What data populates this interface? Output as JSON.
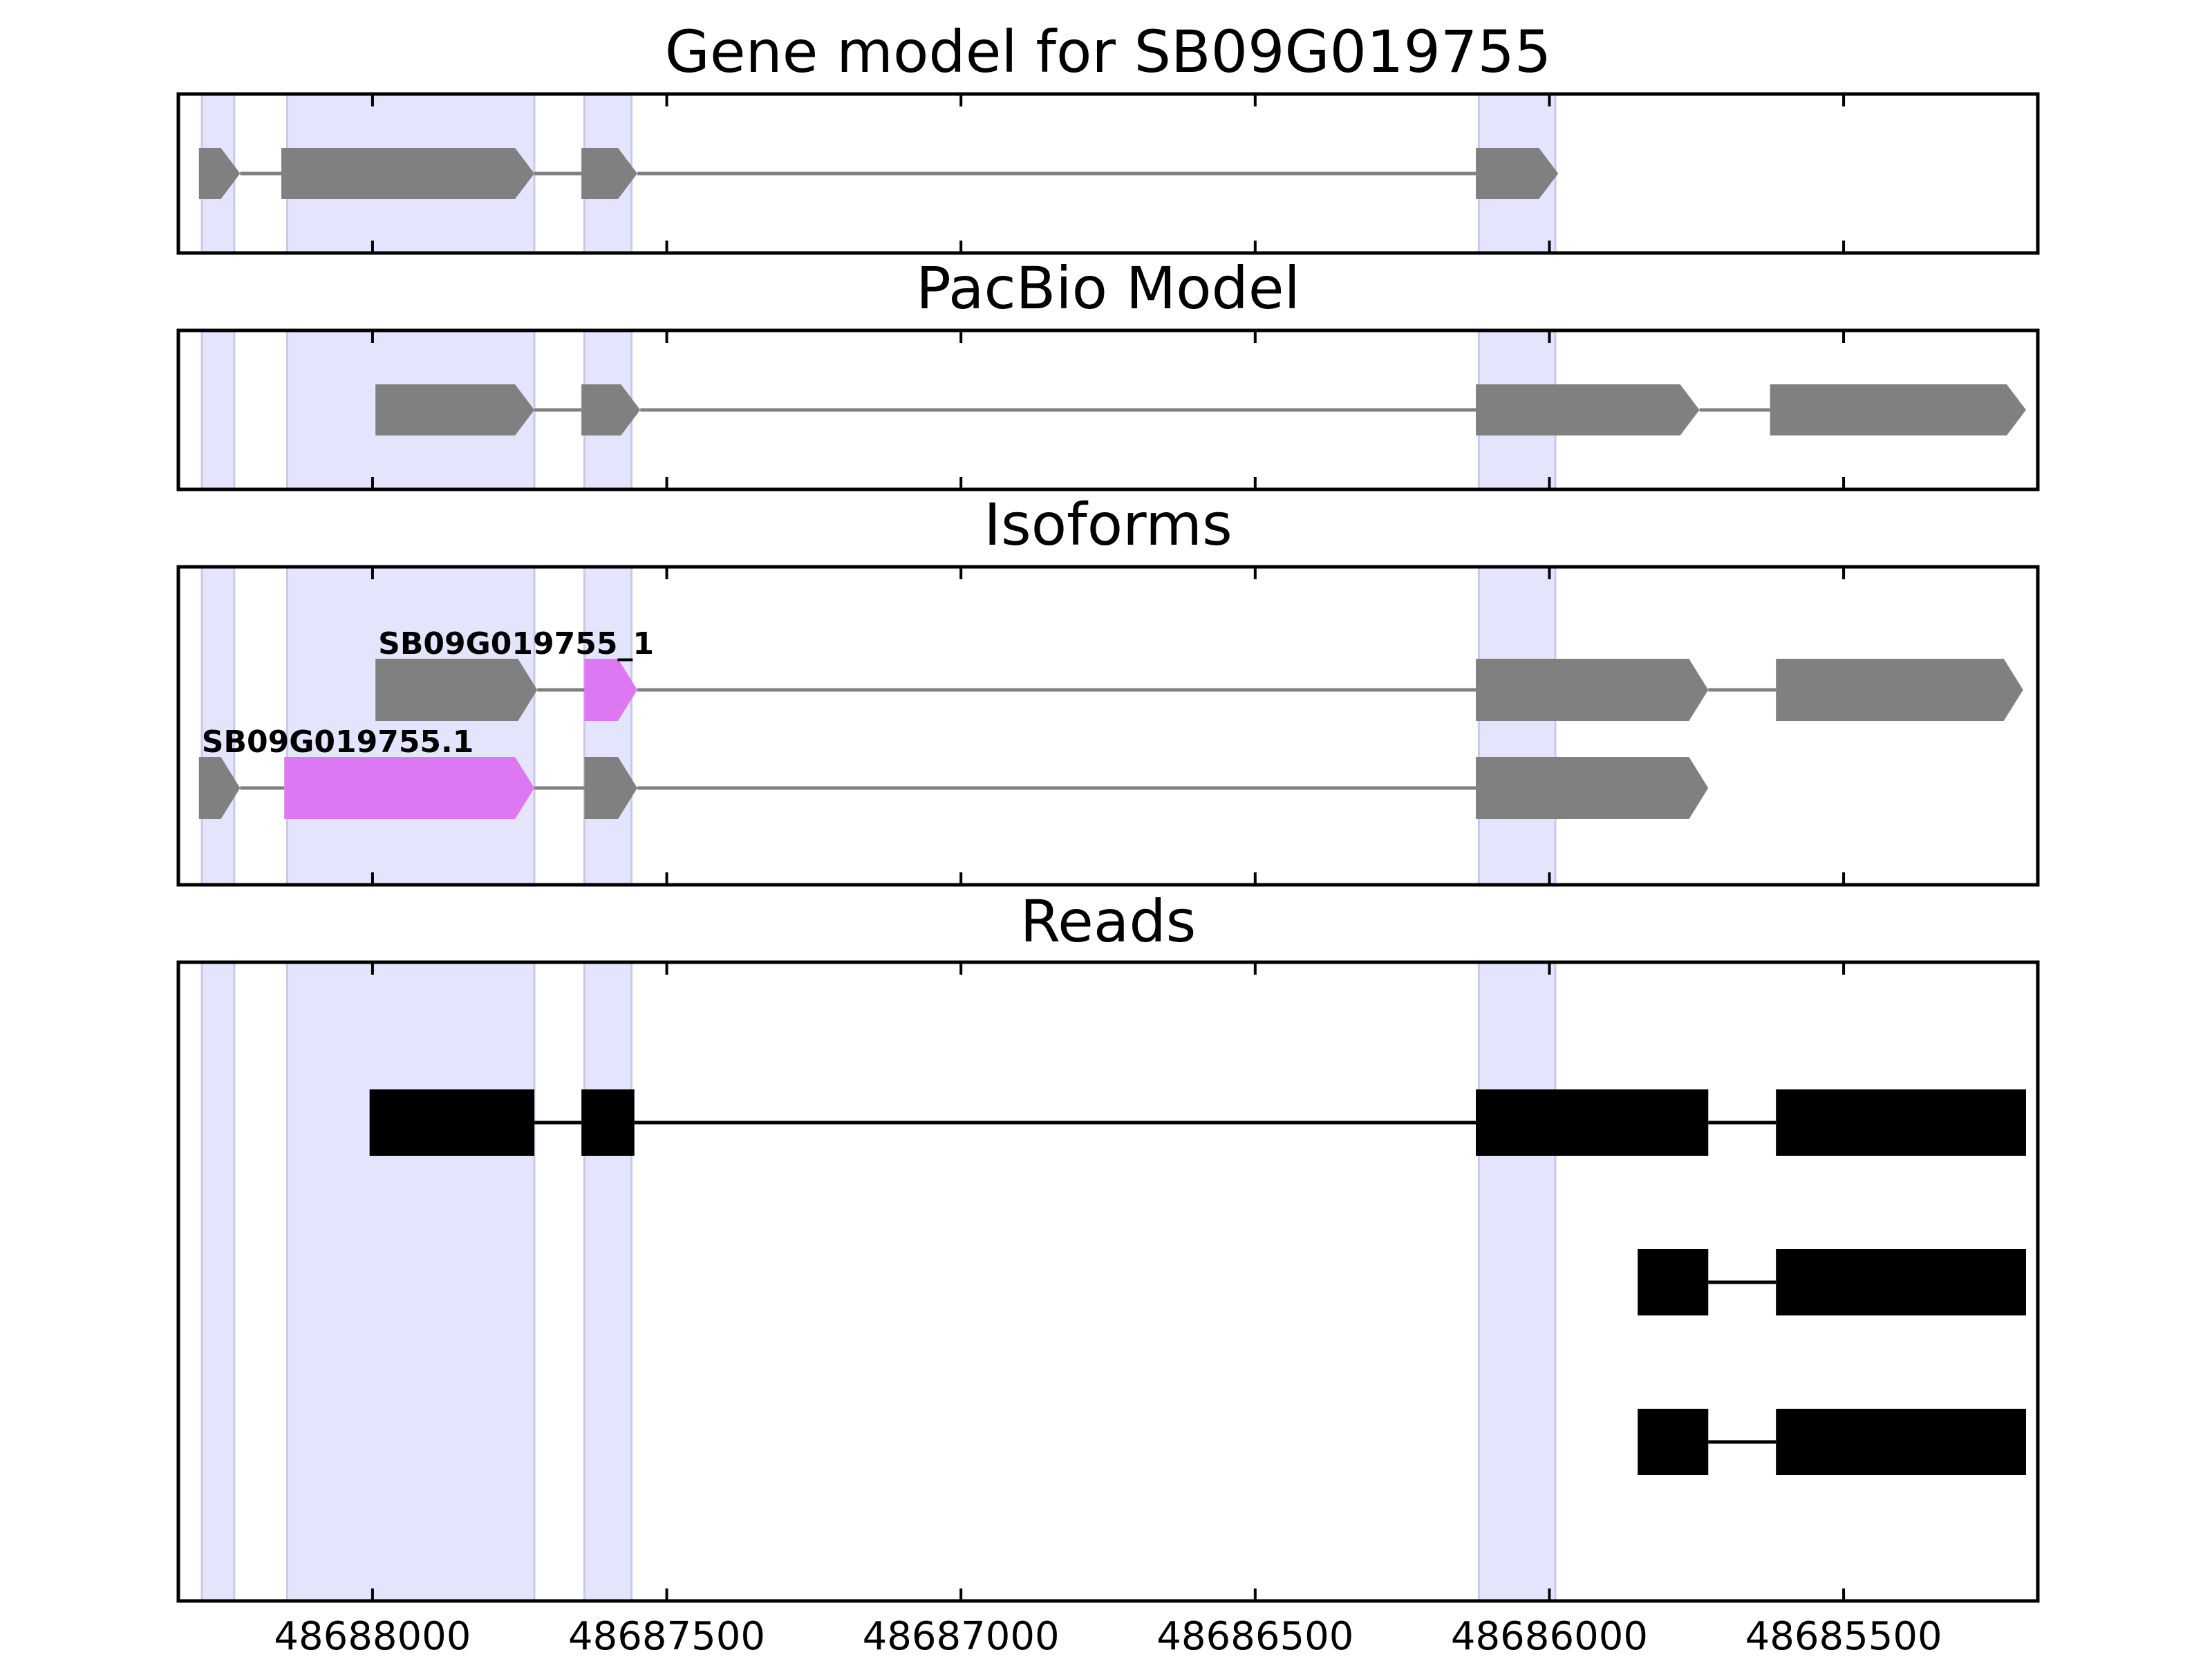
{
  "chart_data": {
    "type": "gene-structure",
    "x_axis": {
      "reversed": true,
      "xlim": [
        48688330,
        48685170
      ],
      "ticks": [
        48688000,
        48687500,
        48687000,
        48686500,
        48686000,
        48685500
      ],
      "tick_labels": [
        "48688000",
        "48687500",
        "48687000",
        "48686500",
        "48686000",
        "48685500"
      ]
    },
    "highlight_color": "#e4e4fc",
    "highlight_regions": [
      [
        48688290,
        48688235
      ],
      [
        48688145,
        48687725
      ],
      [
        48687640,
        48687560
      ],
      [
        48686120,
        48685990
      ]
    ],
    "panels": [
      {
        "title": "Gene model for SB09G019755",
        "tracks": [
          {
            "label": "",
            "exons": [
              [
                48688295,
                48688225
              ],
              [
                48688155,
                48687725
              ],
              [
                48687645,
                48687550
              ],
              [
                48686125,
                48685985
              ]
            ],
            "highlight_exons": []
          }
        ]
      },
      {
        "title": "PacBio Model",
        "tracks": [
          {
            "label": "",
            "exons": [
              [
                48687995,
                48687725
              ],
              [
                48687645,
                48687545
              ],
              [
                48686125,
                48685745
              ],
              [
                48685625,
                48685190
              ]
            ],
            "highlight_exons": []
          }
        ]
      },
      {
        "title": "Isoforms",
        "tracks": [
          {
            "label": "SB09G019755_1",
            "exons": [
              [
                48687995,
                48687720
              ],
              [
                48687640,
                48687550
              ],
              [
                48686125,
                48685730
              ],
              [
                48685615,
                48685195
              ]
            ],
            "highlight_exons": [
              1
            ]
          },
          {
            "label": "SB09G019755.1",
            "exons": [
              [
                48688295,
                48688225
              ],
              [
                48688150,
                48687725
              ],
              [
                48687640,
                48687550
              ],
              [
                48686125,
                48685730
              ]
            ],
            "highlight_exons": [
              1
            ]
          }
        ]
      },
      {
        "title": "Reads",
        "tracks": [
          {
            "label": "",
            "exons": [
              [
                48688005,
                48687725
              ],
              [
                48687645,
                48687555
              ],
              [
                48686125,
                48685730
              ],
              [
                48685615,
                48685190
              ]
            ],
            "highlight_exons": []
          },
          {
            "label": "",
            "exons": [
              [
                48685850,
                48685730
              ],
              [
                48685615,
                48685190
              ]
            ],
            "highlight_exons": []
          },
          {
            "label": "",
            "exons": [
              [
                48685850,
                48685730
              ],
              [
                48685615,
                48685190
              ]
            ],
            "highlight_exons": []
          }
        ]
      }
    ],
    "colors": {
      "model_exon": "#808080",
      "model_intron": "#808080",
      "isoform_highlight": "#dd77f2",
      "read_exon": "#000000",
      "read_intron": "#000000"
    }
  }
}
